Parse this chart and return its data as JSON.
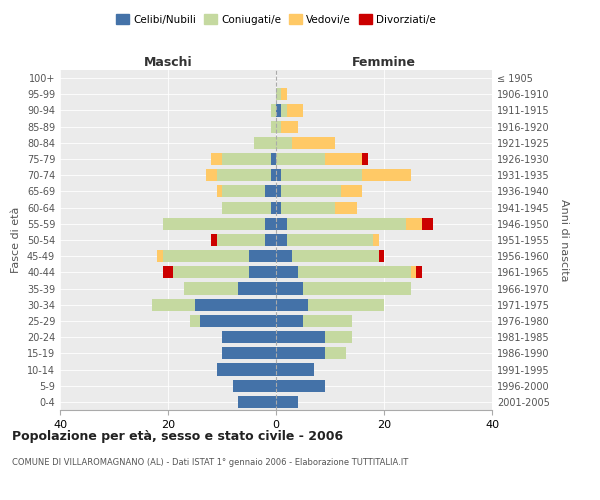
{
  "age_groups": [
    "0-4",
    "5-9",
    "10-14",
    "15-19",
    "20-24",
    "25-29",
    "30-34",
    "35-39",
    "40-44",
    "45-49",
    "50-54",
    "55-59",
    "60-64",
    "65-69",
    "70-74",
    "75-79",
    "80-84",
    "85-89",
    "90-94",
    "95-99",
    "100+"
  ],
  "birth_years": [
    "2001-2005",
    "1996-2000",
    "1991-1995",
    "1986-1990",
    "1981-1985",
    "1976-1980",
    "1971-1975",
    "1966-1970",
    "1961-1965",
    "1956-1960",
    "1951-1955",
    "1946-1950",
    "1941-1945",
    "1936-1940",
    "1931-1935",
    "1926-1930",
    "1921-1925",
    "1916-1920",
    "1911-1915",
    "1906-1910",
    "≤ 1905"
  ],
  "maschi": {
    "celibi": [
      7,
      8,
      11,
      10,
      10,
      14,
      15,
      7,
      5,
      5,
      2,
      2,
      1,
      2,
      1,
      1,
      0,
      0,
      0,
      0,
      0
    ],
    "coniugati": [
      0,
      0,
      0,
      0,
      0,
      2,
      8,
      10,
      14,
      16,
      9,
      19,
      9,
      8,
      10,
      9,
      4,
      1,
      1,
      0,
      0
    ],
    "vedovi": [
      0,
      0,
      0,
      0,
      0,
      0,
      0,
      0,
      0,
      1,
      0,
      0,
      0,
      1,
      2,
      2,
      0,
      0,
      0,
      0,
      0
    ],
    "divorziati": [
      0,
      0,
      0,
      0,
      0,
      0,
      0,
      0,
      2,
      0,
      1,
      0,
      0,
      0,
      0,
      0,
      0,
      0,
      0,
      0,
      0
    ]
  },
  "femmine": {
    "nubili": [
      4,
      9,
      7,
      9,
      9,
      5,
      6,
      5,
      4,
      3,
      2,
      2,
      1,
      1,
      1,
      0,
      0,
      0,
      1,
      0,
      0
    ],
    "coniugate": [
      0,
      0,
      0,
      4,
      5,
      9,
      14,
      20,
      21,
      16,
      16,
      22,
      10,
      11,
      15,
      9,
      3,
      1,
      1,
      1,
      0
    ],
    "vedove": [
      0,
      0,
      0,
      0,
      0,
      0,
      0,
      0,
      1,
      0,
      1,
      3,
      4,
      4,
      9,
      7,
      8,
      3,
      3,
      1,
      0
    ],
    "divorziate": [
      0,
      0,
      0,
      0,
      0,
      0,
      0,
      0,
      1,
      1,
      0,
      2,
      0,
      0,
      0,
      1,
      0,
      0,
      0,
      0,
      0
    ]
  },
  "colors": {
    "celibi_nubili": "#4472a8",
    "coniugati": "#c5d9a0",
    "vedovi": "#ffc966",
    "divorziati": "#cc0000"
  },
  "xlim": 40,
  "title": "Popolazione per età, sesso e stato civile - 2006",
  "subtitle": "COMUNE DI VILLAROMAGNANO (AL) - Dati ISTAT 1° gennaio 2006 - Elaborazione TUTTITALIA.IT",
  "ylabel_left": "Fasce di età",
  "ylabel_right": "Anni di nascita",
  "xlabel_maschi": "Maschi",
  "xlabel_femmine": "Femmine",
  "legend_labels": [
    "Celibi/Nubili",
    "Coniugati/e",
    "Vedovi/e",
    "Divorziati/e"
  ],
  "bg_color": "#ebebeb"
}
